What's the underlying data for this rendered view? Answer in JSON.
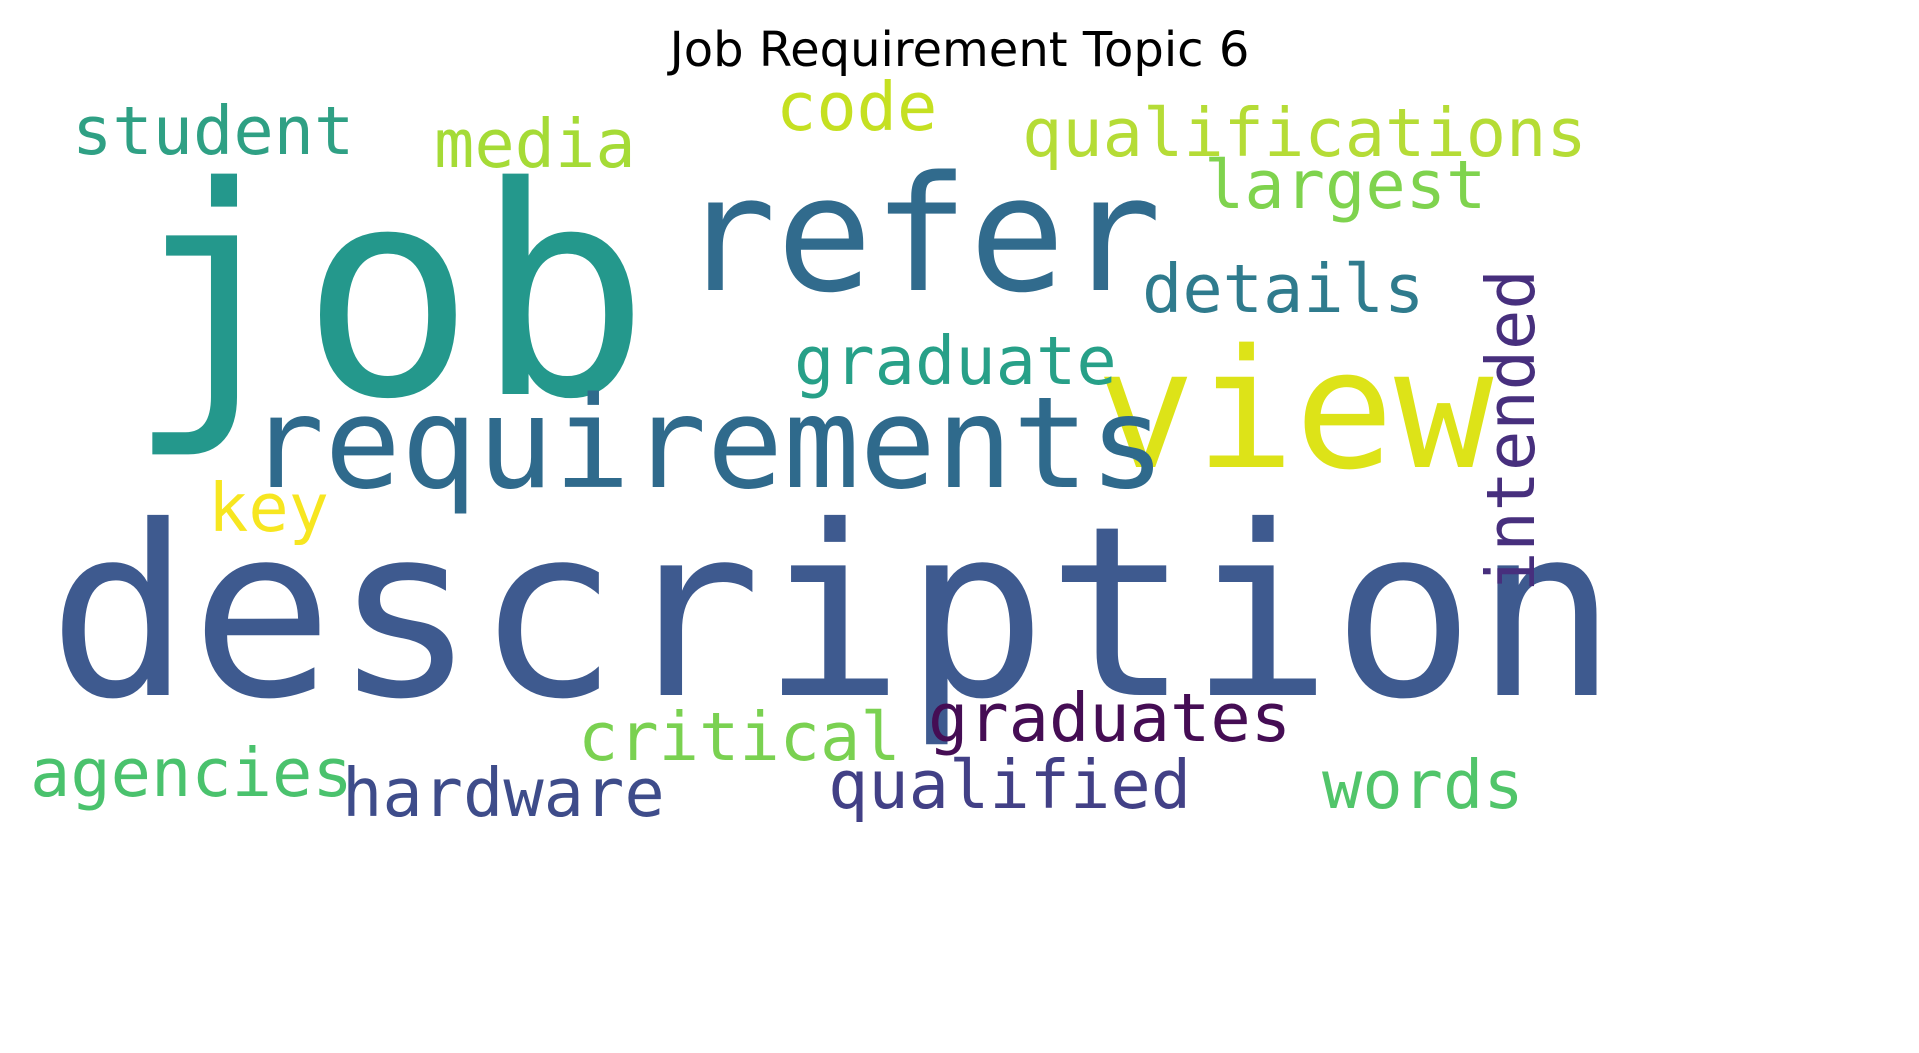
{
  "title": "Job Requirement Topic 6",
  "chart_data": {
    "type": "wordcloud",
    "title": "Job Requirement Topic 6",
    "words": [
      {
        "text": "description",
        "weight": 1.0,
        "color": "#3e5a8f",
        "orientation": "horizontal"
      },
      {
        "text": "job",
        "weight": 0.86,
        "color": "#24988c",
        "orientation": "horizontal"
      },
      {
        "text": "refer",
        "weight": 0.6,
        "color": "#316b8d",
        "orientation": "horizontal"
      },
      {
        "text": "view",
        "weight": 0.56,
        "color": "#dde318",
        "orientation": "horizontal"
      },
      {
        "text": "requirements",
        "weight": 0.48,
        "color": "#2f6a8c",
        "orientation": "horizontal"
      },
      {
        "text": "graduate",
        "weight": 0.24,
        "color": "#27a088",
        "orientation": "horizontal"
      },
      {
        "text": "details",
        "weight": 0.22,
        "color": "#2f7b8d",
        "orientation": "horizontal"
      },
      {
        "text": "intended",
        "weight": 0.22,
        "color": "#472f7d",
        "orientation": "vertical"
      },
      {
        "text": "qualifications",
        "weight": 0.22,
        "color": "#b5dc36",
        "orientation": "horizontal"
      },
      {
        "text": "largest",
        "weight": 0.22,
        "color": "#7fd34e",
        "orientation": "horizontal"
      },
      {
        "text": "student",
        "weight": 0.22,
        "color": "#2fa084",
        "orientation": "horizontal"
      },
      {
        "text": "media",
        "weight": 0.22,
        "color": "#a5db36",
        "orientation": "horizontal"
      },
      {
        "text": "code",
        "weight": 0.22,
        "color": "#c5e021",
        "orientation": "horizontal"
      },
      {
        "text": "key",
        "weight": 0.22,
        "color": "#f7e620",
        "orientation": "horizontal"
      },
      {
        "text": "graduates",
        "weight": 0.22,
        "color": "#450d54",
        "orientation": "horizontal"
      },
      {
        "text": "critical",
        "weight": 0.22,
        "color": "#7ad151",
        "orientation": "horizontal"
      },
      {
        "text": "agencies",
        "weight": 0.22,
        "color": "#4ac26d",
        "orientation": "horizontal"
      },
      {
        "text": "hardware",
        "weight": 0.22,
        "color": "#3e4c8a",
        "orientation": "horizontal"
      },
      {
        "text": "qualified",
        "weight": 0.22,
        "color": "#424086",
        "orientation": "horizontal"
      },
      {
        "text": "words",
        "weight": 0.22,
        "color": "#51c56a",
        "orientation": "horizontal"
      }
    ]
  }
}
